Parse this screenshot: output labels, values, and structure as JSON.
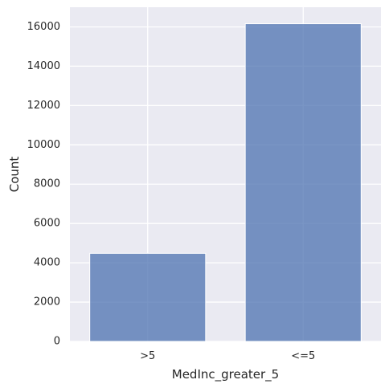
{
  "chart_data": {
    "type": "bar",
    "categories": [
      ">5",
      "<=5"
    ],
    "values": [
      4480,
      16160
    ],
    "xlabel": "MedInc_greater_5",
    "ylabel": "Count",
    "ylim": [
      0,
      17000
    ],
    "yticks": [
      0,
      2000,
      4000,
      6000,
      8000,
      10000,
      12000,
      14000,
      16000
    ],
    "grid": true,
    "legend": "none",
    "colors": {
      "bar": "#4c72b0",
      "plot_background": "#eaeaf2",
      "grid": "#ffffff",
      "text": "#262626"
    }
  }
}
